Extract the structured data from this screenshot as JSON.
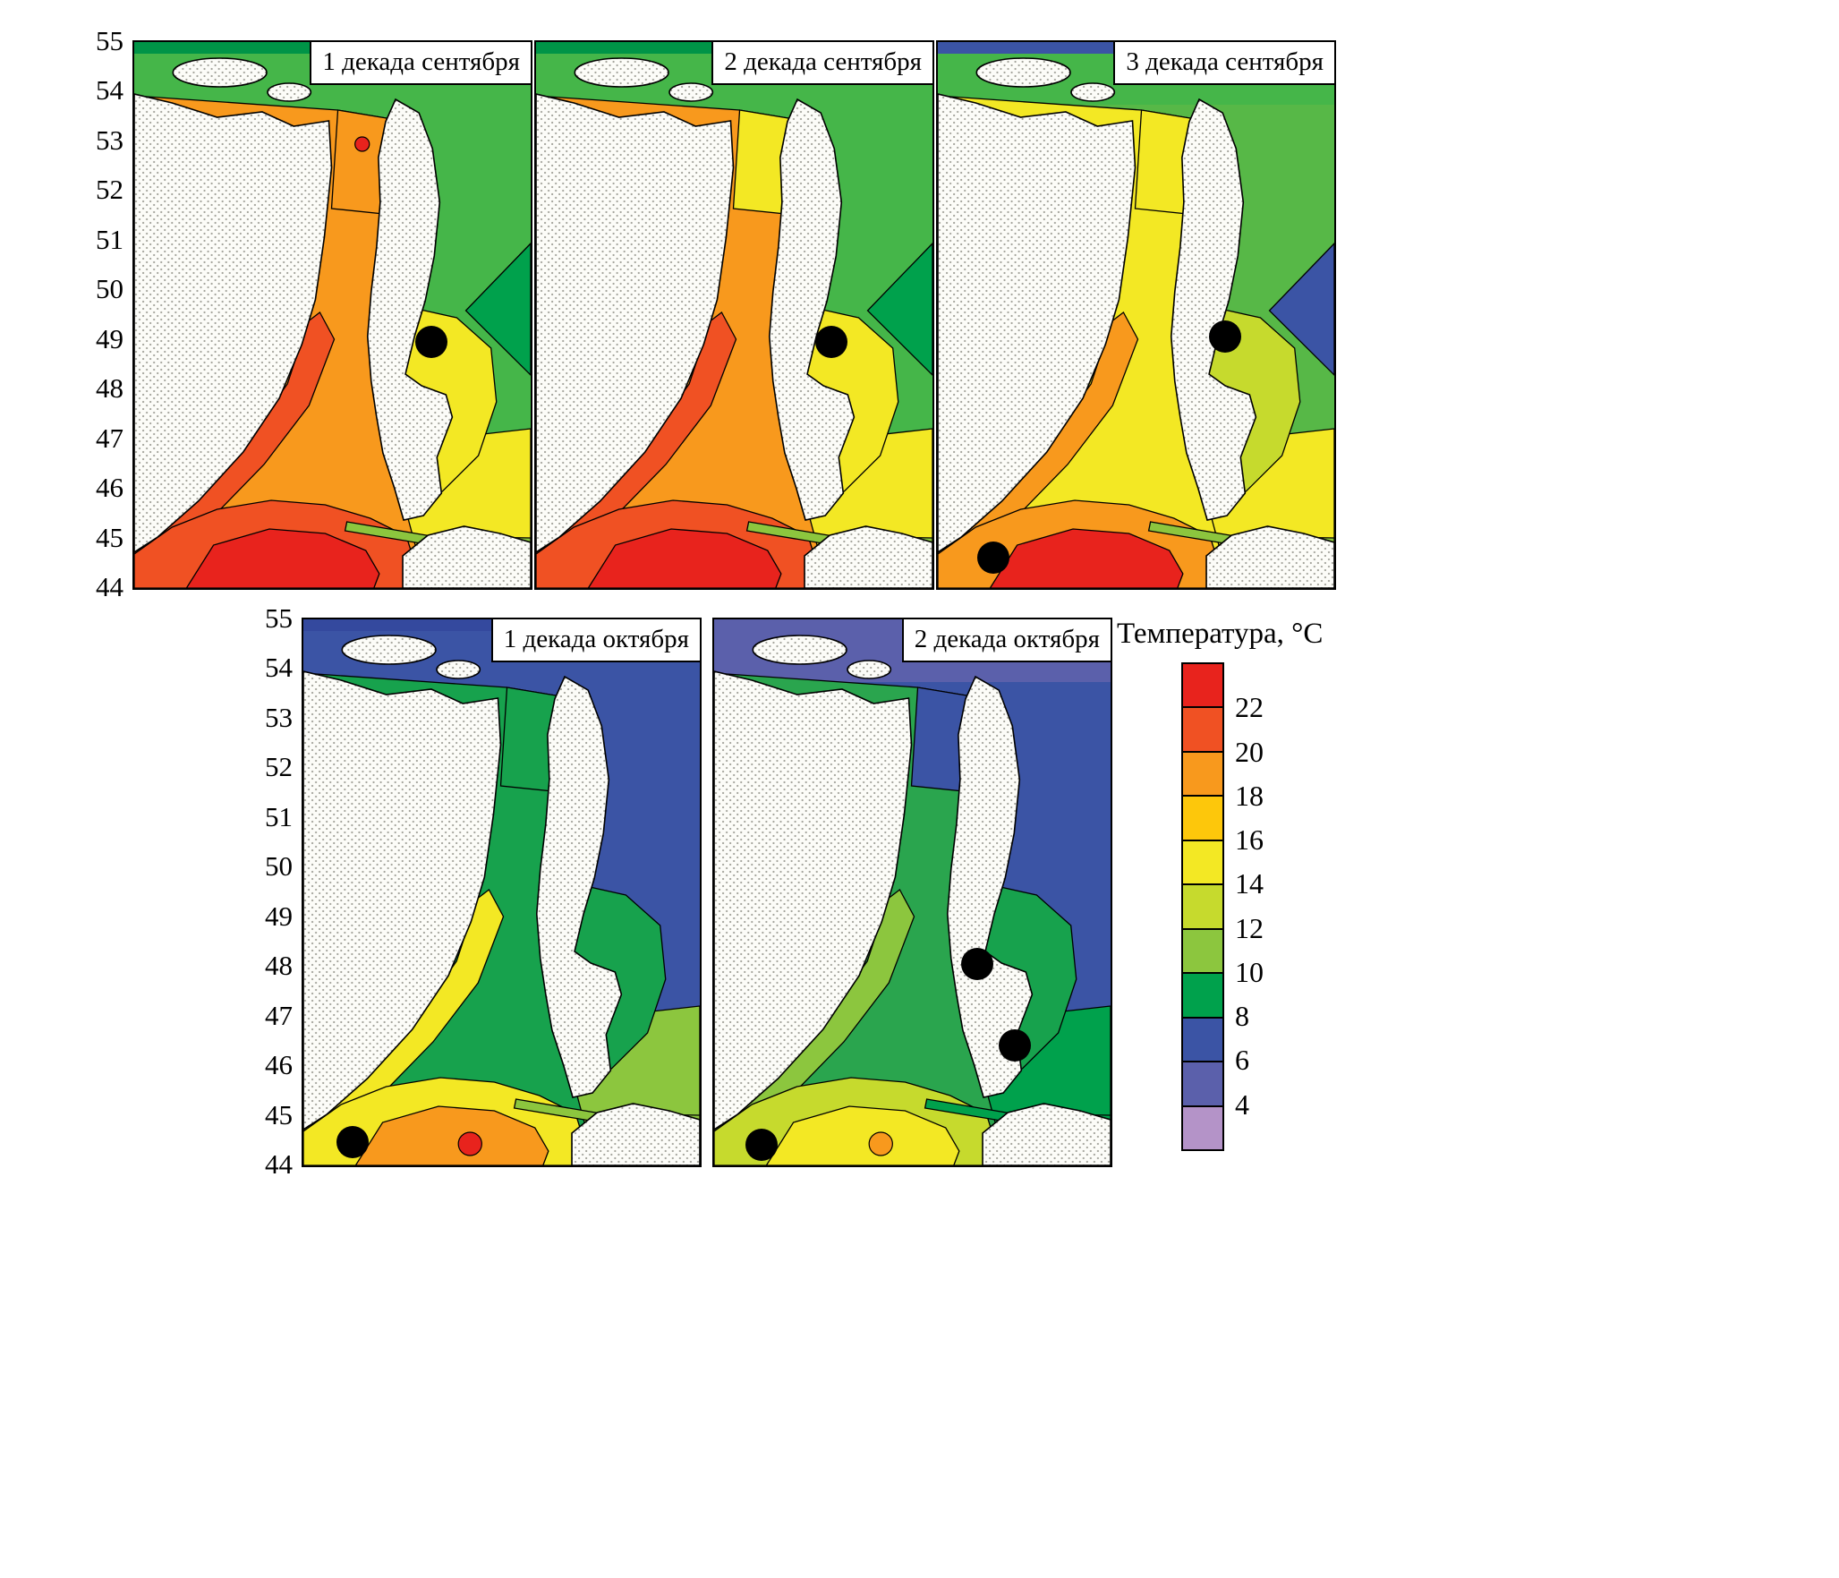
{
  "figure": {
    "background": "#ffffff"
  },
  "y_axis": {
    "ticks": [
      "55",
      "54",
      "53",
      "52",
      "51",
      "50",
      "49",
      "48",
      "47",
      "46",
      "45",
      "44"
    ]
  },
  "legend": {
    "title": "Температура, °С",
    "labels": [
      "22",
      "20",
      "18",
      "16",
      "14",
      "12",
      "10",
      "8",
      "6",
      "4"
    ],
    "colors": [
      "#e8231d",
      "#f05123",
      "#f8991d",
      "#fdc70b",
      "#f3e824",
      "#c6da2d",
      "#8cc63e",
      "#00a14c",
      "#3b54a5",
      "#5b60ab",
      "#b493c8"
    ]
  },
  "panels": [
    {
      "title": "1 декада сентября",
      "dots": [
        {
          "x": 0.745,
          "lat": 49.0
        }
      ],
      "zones": {
        "bg_east": "#45b649",
        "top": "#45b649",
        "top_edge": "#009447",
        "wedge": "#00a14c",
        "east_south": "#f3e824",
        "bay": "#f3e824",
        "strait": "#f8991d",
        "liman": "#f8991d",
        "strait_core": "#f05123",
        "south_ring": "#f05123",
        "south_core": "#e8231d",
        "laperouse": "#8cc63e",
        "liman_spot": "#e8231d",
        "south_spot": null,
        "west_spot": "#f3e824",
        "top_spot": null
      }
    },
    {
      "title": "2 декада сентября",
      "dots": [
        {
          "x": 0.74,
          "lat": 49.0
        }
      ],
      "zones": {
        "bg_east": "#45b649",
        "top": "#45b649",
        "top_edge": "#009447",
        "wedge": "#00a14c",
        "east_south": "#f3e824",
        "bay": "#f3e824",
        "strait": "#f8991d",
        "liman": "#f3e824",
        "strait_core": "#f05123",
        "south_ring": "#f05123",
        "south_core": "#e8231d",
        "laperouse": "#8cc63e",
        "liman_spot": null,
        "south_spot": null,
        "west_spot": "#f3e824",
        "top_spot": null
      }
    },
    {
      "title": "3 декада сентября",
      "dots": [
        {
          "x": 0.72,
          "lat": 49.1
        },
        {
          "x": 0.135,
          "lat": 44.65
        }
      ],
      "zones": {
        "bg_east": "#57b847",
        "top": "#45b649",
        "top_edge": "#3b54a5",
        "wedge": "#3b54a5",
        "east_south": "#f3e824",
        "bay": "#c6da2d",
        "strait": "#f3e824",
        "liman": "#f3e824",
        "strait_core": "#f8991d",
        "south_ring": "#f8991d",
        "south_core": "#e8231d",
        "laperouse": "#8cc63e",
        "liman_spot": null,
        "south_spot": null,
        "west_spot": "#f3e824",
        "top_spot": null
      }
    },
    {
      "title": "1 декада октября",
      "dots": [
        {
          "x": 0.12,
          "lat": 44.5
        }
      ],
      "zones": {
        "bg_east": "#3b54a5",
        "top": "#3b54a5",
        "top_edge": "#34499e",
        "wedge": null,
        "east_south": "#8cc63e",
        "bay": "#17a24d",
        "strait": "#17a24d",
        "liman": "#17a24d",
        "strait_core": "#f3e824",
        "south_ring": "#f3e824",
        "south_core": "#f8991d",
        "laperouse": "#8cc63e",
        "liman_spot": null,
        "south_spot": "#e8231d",
        "west_spot": null,
        "top_spot": null
      }
    },
    {
      "title": "2 декада октября",
      "dots": [
        {
          "x": 0.66,
          "lat": 48.1
        },
        {
          "x": 0.755,
          "lat": 46.45
        },
        {
          "x": 0.115,
          "lat": 44.45
        }
      ],
      "zones": {
        "bg_east": "#3b54a5",
        "top": "#5b60ab",
        "top_edge": "#5b60ab",
        "wedge": null,
        "east_south": "#00a14c",
        "bay": "#17a24d",
        "strait": "#2aa54e",
        "liman": "#3b54a5",
        "strait_core": "#8cc63e",
        "south_ring": "#c6da2d",
        "south_core": "#f3e824",
        "laperouse": "#00a14c",
        "liman_spot": null,
        "south_spot": "#f8991d",
        "west_spot": null,
        "top_spot": "#b493c8"
      }
    }
  ]
}
